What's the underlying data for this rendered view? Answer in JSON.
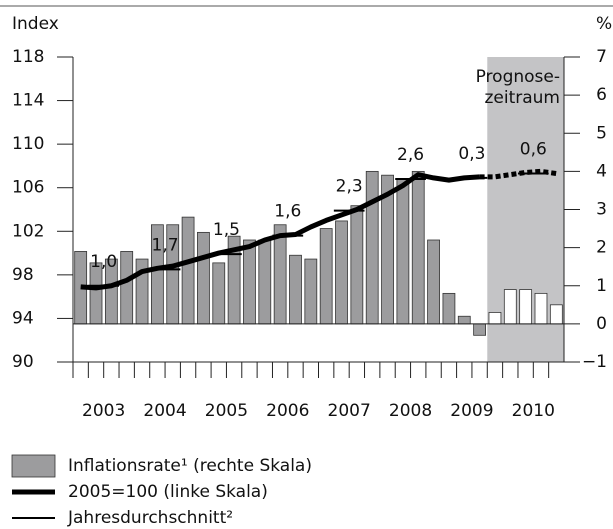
{
  "chart_data": {
    "type": "bar_line",
    "y_title": "Index",
    "y2_title": "%",
    "x": [
      2003.125,
      2003.375,
      2003.625,
      2003.875,
      2004.125,
      2004.375,
      2004.625,
      2004.875,
      2005.125,
      2005.375,
      2005.625,
      2005.875,
      2006.125,
      2006.375,
      2006.625,
      2006.875,
      2007.125,
      2007.375,
      2007.625,
      2007.875,
      2008.125,
      2008.375,
      2008.625,
      2008.875,
      2009.125,
      2009.375,
      2009.625,
      2009.875,
      2010.125,
      2010.375,
      2010.625,
      2010.875
    ],
    "xlim": [
      2003,
      2011
    ],
    "xticks": [
      {
        "value": 2003.5,
        "label": "2003"
      },
      {
        "value": 2004.5,
        "label": "2004"
      },
      {
        "value": 2005.5,
        "label": "2005"
      },
      {
        "value": 2006.5,
        "label": "2006"
      },
      {
        "value": 2007.5,
        "label": "2007"
      },
      {
        "value": 2008.5,
        "label": "2008"
      },
      {
        "value": 2009.5,
        "label": "2009"
      },
      {
        "value": 2010.5,
        "label": "2010"
      }
    ],
    "ylim": [
      90,
      118
    ],
    "yticks": [
      90,
      94,
      98,
      102,
      106,
      110,
      114,
      118
    ],
    "y2lim": [
      -1,
      7
    ],
    "y2ticks": [
      {
        "value": -1,
        "label": "−1"
      },
      0,
      1,
      2,
      3,
      4,
      5,
      6,
      7
    ],
    "forecast": {
      "x_from": 2009.75,
      "label": [
        "Prognose-",
        "zeitraum"
      ],
      "color": "#c4c4c6"
    },
    "series": [
      {
        "name": "Inflationsrate¹ (rechte Skala)",
        "type": "bar",
        "axis": "y2",
        "color": "#9c9c9e",
        "values": [
          1.9,
          1.6,
          1.7,
          1.9,
          1.7,
          2.6,
          2.6,
          2.8,
          2.4,
          1.6,
          2.3,
          2.2,
          2.2,
          2.6,
          1.8,
          1.7,
          2.5,
          2.7,
          3.1,
          4.0,
          3.9,
          3.8,
          4.0,
          2.2,
          0.8,
          0.2,
          -0.3,
          0.3,
          0.9,
          0.9,
          0.8,
          0.5
        ]
      },
      {
        "name": "2005=100 (linke Skala)",
        "type": "line",
        "color": "#000000",
        "values": [
          96.9,
          96.8,
          97.0,
          97.5,
          98.3,
          98.6,
          98.8,
          99.2,
          99.6,
          100.0,
          100.3,
          100.6,
          101.2,
          101.6,
          101.7,
          102.4,
          103.0,
          103.5,
          104.0,
          104.7,
          105.4,
          106.2,
          107.2,
          106.9,
          106.7,
          106.9,
          107.0,
          107.0,
          107.2,
          107.4,
          107.5,
          107.3
        ]
      },
      {
        "name": "Jahresdurchschnitt²",
        "type": "average",
        "color": "#000000",
        "x": [
          2003.5,
          2004.5,
          2005.5,
          2006.5,
          2007.5,
          2008.5,
          2009.5,
          2010.5
        ],
        "values": [
          97.0,
          98.5,
          99.9,
          101.6,
          103.9,
          106.8,
          106.9,
          107.3
        ],
        "growth": [
          1.0,
          1.7,
          1.5,
          1.6,
          2.3,
          2.6,
          0.3,
          0.6
        ],
        "growth_labels": [
          "1,0",
          "1,7",
          "1,5",
          "1,6",
          "2,3",
          "2,6",
          "0,3",
          "0,6"
        ]
      }
    ]
  }
}
